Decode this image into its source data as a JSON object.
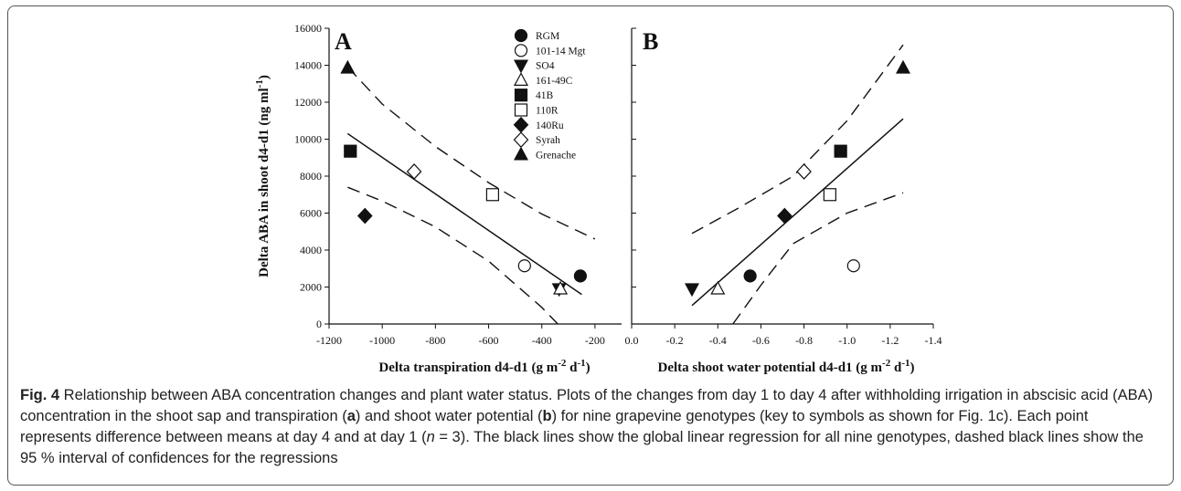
{
  "figure": {
    "chart_data": [
      {
        "type": "scatter",
        "panel_label": "A",
        "xlabel_main": "Delta transpiration d4-d1 (g m",
        "xlabel_exp1": "-2",
        "xlabel_mid": " d",
        "xlabel_exp2": "-1",
        "xlabel_end": ")",
        "ylabel_main": "Delta ABA in shoot d4-d1 (ng ml",
        "ylabel_exp": "-1",
        "ylabel_end": ")",
        "xlim": [
          -1200,
          -100
        ],
        "ylim": [
          0,
          16000
        ],
        "xticks": [
          -1200,
          -1000,
          -800,
          -600,
          -400,
          -200
        ],
        "yticks": [
          0,
          2000,
          4000,
          6000,
          8000,
          10000,
          12000,
          14000,
          16000
        ],
        "grid": false,
        "series": [
          {
            "name": "RGM",
            "marker": "circle-filled",
            "x": [
              -255
            ],
            "y": [
              2600
            ]
          },
          {
            "name": "101-14 Mgt",
            "marker": "circle-open",
            "x": [
              -465
            ],
            "y": [
              3150
            ]
          },
          {
            "name": "SO4",
            "marker": "triangle-down-filled",
            "x": [
              -335
            ],
            "y": [
              1900
            ]
          },
          {
            "name": "161-49C",
            "marker": "triangle-up-open",
            "x": [
              -330
            ],
            "y": [
              1900
            ]
          },
          {
            "name": "41B",
            "marker": "square-filled",
            "x": [
              -1120
            ],
            "y": [
              9350
            ]
          },
          {
            "name": "110R",
            "marker": "square-open",
            "x": [
              -585
            ],
            "y": [
              7000
            ]
          },
          {
            "name": "140Ru",
            "marker": "diamond-filled",
            "x": [
              -1065
            ],
            "y": [
              5850
            ]
          },
          {
            "name": "Syrah",
            "marker": "diamond-open",
            "x": [
              -880
            ],
            "y": [
              8250
            ]
          },
          {
            "name": "Grenache",
            "marker": "triangle-up-filled",
            "x": [
              -1130
            ],
            "y": [
              13850
            ]
          }
        ],
        "regression_line": {
          "x": [
            -1130,
            -250
          ],
          "y": [
            10300,
            1600
          ]
        },
        "ci_upper": {
          "x": [
            -1130,
            -1000,
            -800,
            -600,
            -400,
            -200
          ],
          "y": [
            13900,
            11900,
            9600,
            7650,
            5950,
            4600
          ]
        },
        "ci_lower": {
          "x": [
            -1130,
            -1000,
            -800,
            -600,
            -400,
            -340
          ],
          "y": [
            7400,
            6650,
            5250,
            3400,
            900,
            0
          ]
        }
      },
      {
        "type": "scatter",
        "panel_label": "B",
        "xlabel_main": "Delta shoot water potential d4-d1 (g m",
        "xlabel_exp1": "-2",
        "xlabel_mid": " d",
        "xlabel_exp2": "-1",
        "xlabel_end": ")",
        "xlim": [
          0.0,
          -1.4
        ],
        "ylim": [
          0,
          16000
        ],
        "xticks": [
          "0.0",
          "-0.2",
          "-0.4",
          "-0.6",
          "-0.8",
          "-1.0",
          "-1.2",
          "-1.4"
        ],
        "grid": false,
        "series": [
          {
            "name": "RGM",
            "marker": "circle-filled",
            "x": [
              -0.55
            ],
            "y": [
              2600
            ]
          },
          {
            "name": "101-14 Mgt",
            "marker": "circle-open",
            "x": [
              -1.03
            ],
            "y": [
              3150
            ]
          },
          {
            "name": "SO4",
            "marker": "triangle-down-filled",
            "x": [
              -0.28
            ],
            "y": [
              1900
            ]
          },
          {
            "name": "161-49C",
            "marker": "triangle-up-open",
            "x": [
              -0.4
            ],
            "y": [
              1900
            ]
          },
          {
            "name": "41B",
            "marker": "square-filled",
            "x": [
              -0.97
            ],
            "y": [
              9350
            ]
          },
          {
            "name": "110R",
            "marker": "square-open",
            "x": [
              -0.92
            ],
            "y": [
              7000
            ]
          },
          {
            "name": "140Ru",
            "marker": "diamond-filled",
            "x": [
              -0.71
            ],
            "y": [
              5850
            ]
          },
          {
            "name": "Syrah",
            "marker": "diamond-open",
            "x": [
              -0.8
            ],
            "y": [
              8250
            ]
          },
          {
            "name": "Grenache",
            "marker": "triangle-up-filled",
            "x": [
              -1.26
            ],
            "y": [
              13850
            ]
          }
        ],
        "regression_line": {
          "x": [
            -0.28,
            -1.26
          ],
          "y": [
            1000,
            11100
          ]
        },
        "ci_upper": {
          "x": [
            -0.28,
            -0.5,
            -0.75,
            -1.0,
            -1.26
          ],
          "y": [
            4900,
            6300,
            8000,
            11000,
            15100
          ]
        },
        "ci_lower": {
          "x": [
            -0.47,
            -0.6,
            -0.75,
            -1.0,
            -1.26
          ],
          "y": [
            0,
            2100,
            4350,
            6000,
            7100
          ]
        }
      }
    ],
    "legend": [
      {
        "label": "RGM",
        "marker": "circle-filled"
      },
      {
        "label": "101-14 Mgt",
        "marker": "circle-open"
      },
      {
        "label": "SO4",
        "marker": "triangle-down-filled"
      },
      {
        "label": "161-49C",
        "marker": "triangle-up-open"
      },
      {
        "label": "41B",
        "marker": "square-filled"
      },
      {
        "label": "110R",
        "marker": "square-open"
      },
      {
        "label": "140Ru",
        "marker": "diamond-filled"
      },
      {
        "label": "Syrah",
        "marker": "diamond-open"
      },
      {
        "label": "Grenache",
        "marker": "triangle-up-filled"
      }
    ],
    "legend_placement": "top-right of panel A",
    "colors": {
      "ink": "#111111",
      "frame": "#555555",
      "caption": "#222222"
    }
  },
  "caption": {
    "label": "Fig. 4",
    "p1": " Relationship between ABA concentration changes and plant water status. Plots of the changes from day 1 to day 4 after withholding irrigation in abscisic acid (ABA) concentration in the shoot sap and transpiration (",
    "a": "a",
    "p2": ") and shoot water potential (",
    "b": "b",
    "p3": ") for nine grapevine genotypes (key to symbols as shown for Fig. 1c). Each point represents difference between means at day 4 and at day 1 (",
    "n": "n",
    "p4": " = 3). The black lines show the global linear regression for all nine genotypes, dashed black lines show the 95 % interval of confidences for the regressions"
  }
}
